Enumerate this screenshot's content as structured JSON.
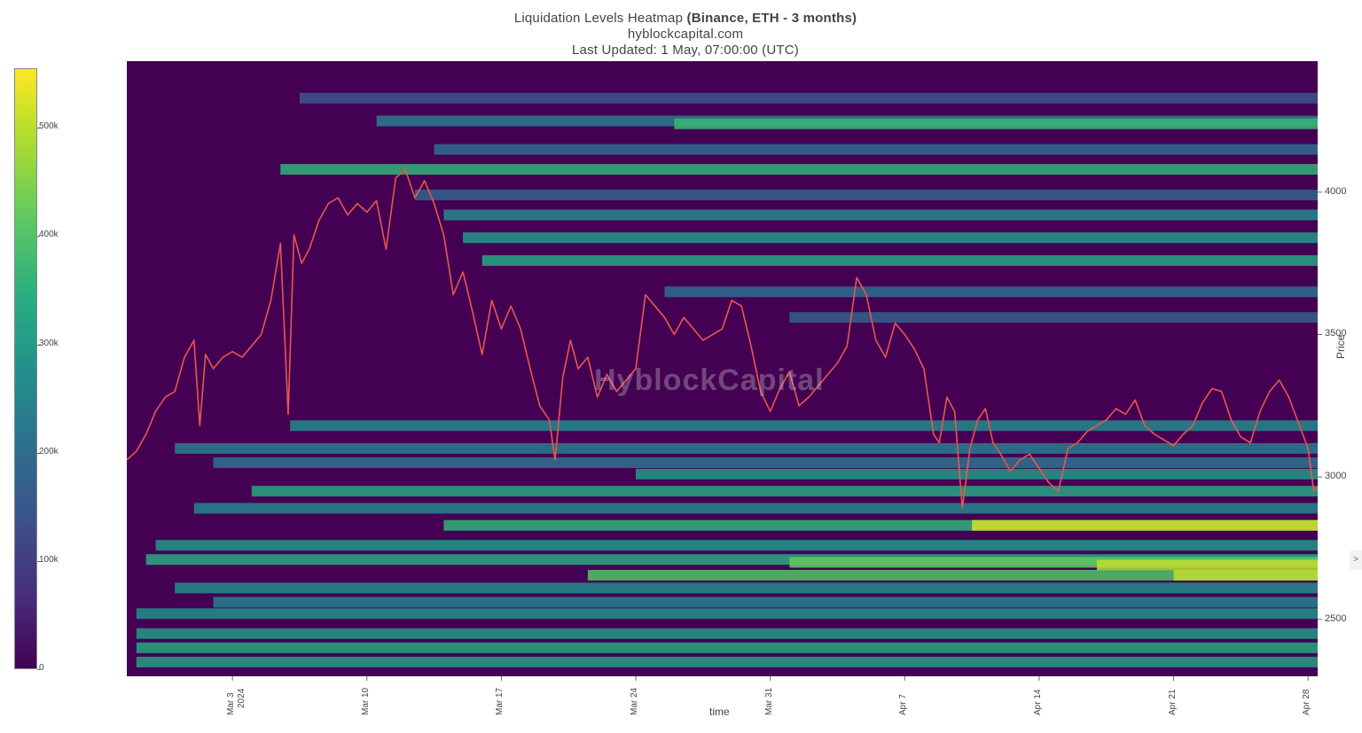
{
  "title": {
    "line1_prefix": "Liquidation Levels Heatmap ",
    "line1_bold": "(Binance, ETH - 3 months)",
    "line2": "hyblockcapital.com",
    "line3": "Last Updated: 1 May, 07:00:00 (UTC)"
  },
  "watermark": "HyblockCapital",
  "colorbar": {
    "ticks": [
      "0",
      "100k",
      "200k",
      "300k",
      "400k",
      "500k"
    ],
    "tick_values": [
      0,
      100000,
      200000,
      300000,
      400000,
      500000
    ],
    "max": 555000,
    "colors": [
      "#440154",
      "#472d7b",
      "#3b528b",
      "#2c728e",
      "#21918c",
      "#28ae80",
      "#5ec962",
      "#addc30",
      "#fde725"
    ]
  },
  "ui": {
    "side_toggle": ">"
  },
  "chart_data": {
    "type": "heatmap",
    "title": "Liquidation Levels Heatmap (Binance, ETH - 3 months)",
    "xlabel": "time",
    "ylabel": "Price",
    "ylim": [
      2300,
      4460
    ],
    "x_range_days": [
      27.5,
      89.5
    ],
    "x_ticks": [
      {
        "day": 33,
        "label": "Mar 3",
        "sub": "2024"
      },
      {
        "day": 40,
        "label": "Mar 10"
      },
      {
        "day": 47,
        "label": "Mar 17"
      },
      {
        "day": 54,
        "label": "Mar 24"
      },
      {
        "day": 61,
        "label": "Mar 31"
      },
      {
        "day": 68,
        "label": "Apr 7"
      },
      {
        "day": 75,
        "label": "Apr 14"
      },
      {
        "day": 82,
        "label": "Apr 21"
      },
      {
        "day": 89,
        "label": "Apr 28"
      }
    ],
    "y_ticks": [
      2500,
      3000,
      3500,
      4000
    ],
    "price_series": {
      "color": "#e8574e",
      "points": [
        [
          27.5,
          3060
        ],
        [
          28.0,
          3090
        ],
        [
          28.5,
          3150
        ],
        [
          29.0,
          3230
        ],
        [
          29.5,
          3280
        ],
        [
          30.0,
          3300
        ],
        [
          30.5,
          3420
        ],
        [
          31.0,
          3480
        ],
        [
          31.3,
          3180
        ],
        [
          31.6,
          3430
        ],
        [
          32.0,
          3380
        ],
        [
          32.5,
          3420
        ],
        [
          33.0,
          3440
        ],
        [
          33.5,
          3420
        ],
        [
          34.0,
          3460
        ],
        [
          34.5,
          3500
        ],
        [
          35.0,
          3620
        ],
        [
          35.5,
          3820
        ],
        [
          35.9,
          3220
        ],
        [
          36.2,
          3850
        ],
        [
          36.6,
          3750
        ],
        [
          37.0,
          3800
        ],
        [
          37.5,
          3900
        ],
        [
          38.0,
          3960
        ],
        [
          38.5,
          3980
        ],
        [
          39.0,
          3920
        ],
        [
          39.5,
          3960
        ],
        [
          40.0,
          3930
        ],
        [
          40.5,
          3970
        ],
        [
          41.0,
          3800
        ],
        [
          41.5,
          4050
        ],
        [
          42.0,
          4080
        ],
        [
          42.5,
          3980
        ],
        [
          43.0,
          4040
        ],
        [
          43.5,
          3960
        ],
        [
          44.0,
          3850
        ],
        [
          44.5,
          3640
        ],
        [
          45.0,
          3720
        ],
        [
          45.5,
          3580
        ],
        [
          46.0,
          3430
        ],
        [
          46.5,
          3620
        ],
        [
          47.0,
          3520
        ],
        [
          47.5,
          3600
        ],
        [
          48.0,
          3520
        ],
        [
          48.5,
          3380
        ],
        [
          49.0,
          3250
        ],
        [
          49.5,
          3200
        ],
        [
          49.8,
          3060
        ],
        [
          50.2,
          3350
        ],
        [
          50.6,
          3480
        ],
        [
          51.0,
          3380
        ],
        [
          51.5,
          3420
        ],
        [
          52.0,
          3280
        ],
        [
          52.5,
          3360
        ],
        [
          53.0,
          3300
        ],
        [
          53.5,
          3340
        ],
        [
          54.0,
          3380
        ],
        [
          54.5,
          3640
        ],
        [
          55.0,
          3600
        ],
        [
          55.5,
          3560
        ],
        [
          56.0,
          3500
        ],
        [
          56.5,
          3560
        ],
        [
          57.0,
          3520
        ],
        [
          57.5,
          3480
        ],
        [
          58.0,
          3500
        ],
        [
          58.5,
          3520
        ],
        [
          59.0,
          3620
        ],
        [
          59.5,
          3600
        ],
        [
          60.0,
          3460
        ],
        [
          60.5,
          3300
        ],
        [
          61.0,
          3230
        ],
        [
          61.5,
          3310
        ],
        [
          62.0,
          3370
        ],
        [
          62.5,
          3250
        ],
        [
          63.0,
          3280
        ],
        [
          63.5,
          3320
        ],
        [
          64.0,
          3360
        ],
        [
          64.5,
          3400
        ],
        [
          65.0,
          3460
        ],
        [
          65.5,
          3700
        ],
        [
          66.0,
          3640
        ],
        [
          66.5,
          3480
        ],
        [
          67.0,
          3420
        ],
        [
          67.5,
          3540
        ],
        [
          68.0,
          3500
        ],
        [
          68.5,
          3450
        ],
        [
          69.0,
          3380
        ],
        [
          69.5,
          3150
        ],
        [
          69.8,
          3120
        ],
        [
          70.2,
          3280
        ],
        [
          70.6,
          3230
        ],
        [
          71.0,
          2890
        ],
        [
          71.4,
          3100
        ],
        [
          71.8,
          3200
        ],
        [
          72.2,
          3240
        ],
        [
          72.6,
          3120
        ],
        [
          73.0,
          3080
        ],
        [
          73.5,
          3020
        ],
        [
          74.0,
          3060
        ],
        [
          74.5,
          3080
        ],
        [
          75.0,
          3030
        ],
        [
          75.5,
          2980
        ],
        [
          76.0,
          2950
        ],
        [
          76.5,
          3100
        ],
        [
          77.0,
          3120
        ],
        [
          77.5,
          3160
        ],
        [
          78.0,
          3180
        ],
        [
          78.5,
          3200
        ],
        [
          79.0,
          3240
        ],
        [
          79.5,
          3220
        ],
        [
          80.0,
          3270
        ],
        [
          80.5,
          3180
        ],
        [
          81.0,
          3150
        ],
        [
          81.5,
          3130
        ],
        [
          82.0,
          3110
        ],
        [
          82.5,
          3150
        ],
        [
          83.0,
          3180
        ],
        [
          83.5,
          3260
        ],
        [
          84.0,
          3310
        ],
        [
          84.5,
          3300
        ],
        [
          85.0,
          3200
        ],
        [
          85.5,
          3140
        ],
        [
          86.0,
          3120
        ],
        [
          86.5,
          3230
        ],
        [
          87.0,
          3300
        ],
        [
          87.5,
          3340
        ],
        [
          88.0,
          3280
        ],
        [
          88.5,
          3190
        ],
        [
          89.0,
          3100
        ],
        [
          89.3,
          2950
        ],
        [
          89.5,
          2960
        ]
      ]
    },
    "liquidation_bands": [
      {
        "price": 4330,
        "start_day": 36.5,
        "value": 150000
      },
      {
        "price": 4250,
        "start_day": 40.5,
        "value": 230000
      },
      {
        "price": 4240,
        "start_day": 56.0,
        "value": 370000
      },
      {
        "price": 4150,
        "start_day": 43.5,
        "value": 200000
      },
      {
        "price": 4080,
        "start_day": 35.5,
        "value": 360000
      },
      {
        "price": 3990,
        "start_day": 42.5,
        "value": 180000
      },
      {
        "price": 3920,
        "start_day": 44.0,
        "value": 260000
      },
      {
        "price": 3840,
        "start_day": 45.0,
        "value": 300000
      },
      {
        "price": 3760,
        "start_day": 46.0,
        "value": 330000
      },
      {
        "price": 3650,
        "start_day": 55.5,
        "value": 200000
      },
      {
        "price": 3560,
        "start_day": 62.0,
        "value": 170000
      },
      {
        "price": 3180,
        "start_day": 36.0,
        "value": 260000
      },
      {
        "price": 3100,
        "start_day": 30.0,
        "value": 230000
      },
      {
        "price": 3050,
        "start_day": 32.0,
        "value": 210000
      },
      {
        "price": 3010,
        "start_day": 54.0,
        "value": 300000
      },
      {
        "price": 2950,
        "start_day": 34.0,
        "value": 330000
      },
      {
        "price": 2890,
        "start_day": 31.0,
        "value": 250000
      },
      {
        "price": 2830,
        "start_day": 44.0,
        "value": 360000
      },
      {
        "price": 2830,
        "start_day": 71.5,
        "value": 520000
      },
      {
        "price": 2760,
        "start_day": 29.0,
        "value": 290000
      },
      {
        "price": 2710,
        "start_day": 28.5,
        "value": 340000
      },
      {
        "price": 2700,
        "start_day": 62.0,
        "value": 420000
      },
      {
        "price": 2690,
        "start_day": 78.0,
        "value": 500000
      },
      {
        "price": 2655,
        "start_day": 51.5,
        "value": 400000
      },
      {
        "price": 2655,
        "start_day": 82.0,
        "value": 500000
      },
      {
        "price": 2610,
        "start_day": 30.0,
        "value": 270000
      },
      {
        "price": 2560,
        "start_day": 32.0,
        "value": 240000
      },
      {
        "price": 2520,
        "start_day": 28.0,
        "value": 280000
      },
      {
        "price": 2450,
        "start_day": 28.0,
        "value": 300000
      },
      {
        "price": 2400,
        "start_day": 28.0,
        "value": 330000
      },
      {
        "price": 2350,
        "start_day": 28.0,
        "value": 310000
      }
    ]
  }
}
